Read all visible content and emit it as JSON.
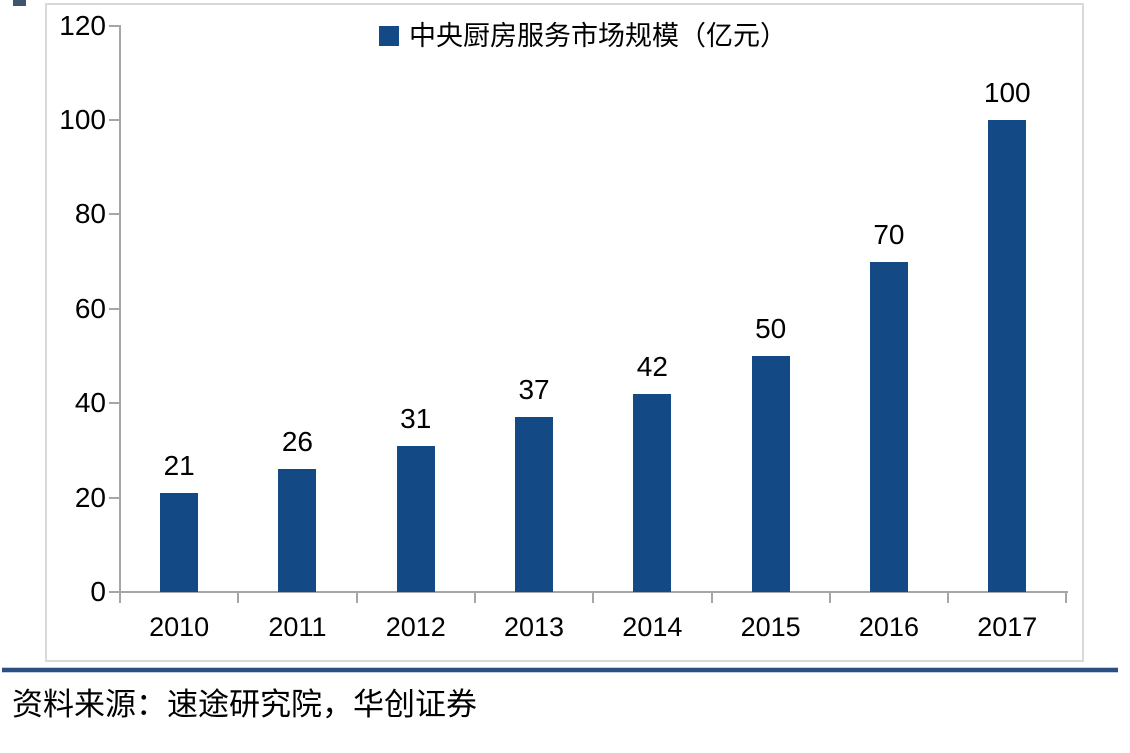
{
  "chart_data": {
    "type": "bar",
    "title": "",
    "legend": "中央厨房服务市场规模（亿元）",
    "legend_position": "top-center",
    "categories": [
      "2010",
      "2011",
      "2012",
      "2013",
      "2014",
      "2015",
      "2016",
      "2017"
    ],
    "values": [
      21,
      26,
      31,
      37,
      42,
      50,
      70,
      100
    ],
    "xlabel": "",
    "ylabel": "",
    "ylim": [
      0,
      120
    ],
    "yticks": [
      0,
      20,
      40,
      60,
      80,
      100,
      120
    ],
    "grid": false,
    "bar_color": "#134a86"
  },
  "colors": {
    "bar": "#134a86",
    "axis": "#a6a6a6",
    "frame_border": "#d9d9d9",
    "rule_core": "#2a5082",
    "rule_edge": "#c2d0e2",
    "text": "#000000"
  },
  "source_note": "资料来源：速途研究院，华创证券"
}
